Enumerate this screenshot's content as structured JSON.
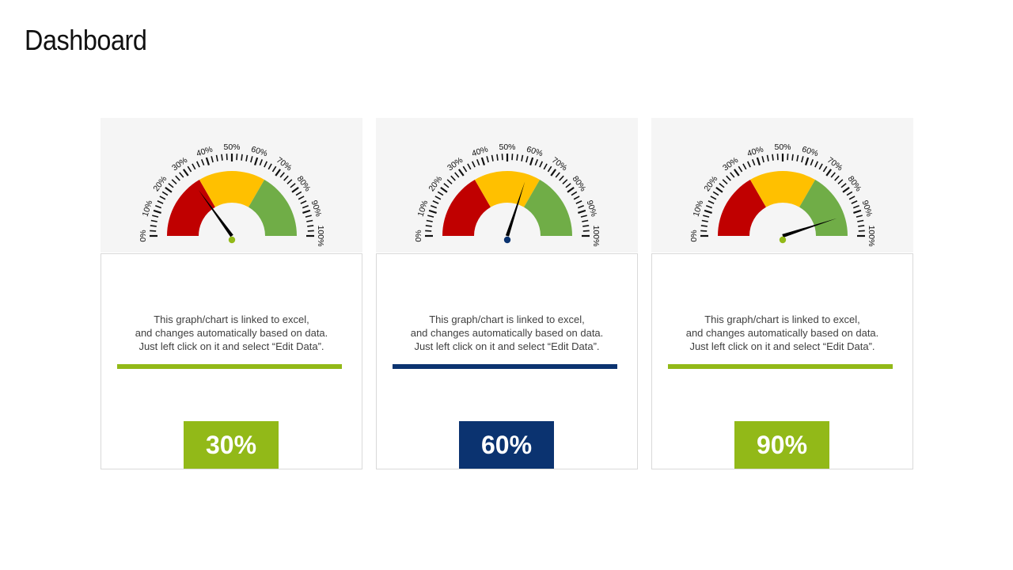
{
  "page": {
    "title": "Dashboard"
  },
  "gauge_scale": {
    "tick_labels": [
      "0%",
      "10%",
      "20%",
      "30%",
      "40%",
      "50%",
      "60%",
      "70%",
      "80%",
      "90%",
      "100%"
    ]
  },
  "cards": [
    {
      "description": [
        "This graph/chart is linked to excel,",
        "and changes automatically based on data.",
        "Just left click on it and select “Edit Data”."
      ],
      "value_label": "30%",
      "accent_color": "#92b918",
      "needle_center_color": "#92b918"
    },
    {
      "description": [
        "This graph/chart is linked to excel,",
        "and changes automatically based on data.",
        "Just left click on it and select “Edit Data”."
      ],
      "value_label": "60%",
      "accent_color": "#0b3370",
      "needle_center_color": "#0b3370"
    },
    {
      "description": [
        "This graph/chart is linked to excel,",
        "and changes automatically based on data.",
        "Just left click on it and select “Edit Data”."
      ],
      "value_label": "90%",
      "accent_color": "#92b918",
      "needle_center_color": "#92b918"
    }
  ],
  "chart_data": [
    {
      "type": "gauge",
      "value": 30,
      "min": 0,
      "max": 100,
      "bands": [
        {
          "from": 0,
          "to": 33.3,
          "color": "#c00000"
        },
        {
          "from": 33.3,
          "to": 66.7,
          "color": "#ffc000"
        },
        {
          "from": 66.7,
          "to": 100,
          "color": "#70ad47"
        }
      ],
      "tick_labels": [
        "0%",
        "10%",
        "20%",
        "30%",
        "40%",
        "50%",
        "60%",
        "70%",
        "80%",
        "90%",
        "100%"
      ]
    },
    {
      "type": "gauge",
      "value": 60,
      "min": 0,
      "max": 100,
      "bands": [
        {
          "from": 0,
          "to": 33.3,
          "color": "#c00000"
        },
        {
          "from": 33.3,
          "to": 66.7,
          "color": "#ffc000"
        },
        {
          "from": 66.7,
          "to": 100,
          "color": "#70ad47"
        }
      ],
      "tick_labels": [
        "0%",
        "10%",
        "20%",
        "30%",
        "40%",
        "50%",
        "60%",
        "70%",
        "80%",
        "90%",
        "100%"
      ]
    },
    {
      "type": "gauge",
      "value": 90,
      "min": 0,
      "max": 100,
      "bands": [
        {
          "from": 0,
          "to": 33.3,
          "color": "#c00000"
        },
        {
          "from": 33.3,
          "to": 66.7,
          "color": "#ffc000"
        },
        {
          "from": 66.7,
          "to": 100,
          "color": "#70ad47"
        }
      ],
      "tick_labels": [
        "0%",
        "10%",
        "20%",
        "30%",
        "40%",
        "50%",
        "60%",
        "70%",
        "80%",
        "90%",
        "100%"
      ]
    }
  ]
}
